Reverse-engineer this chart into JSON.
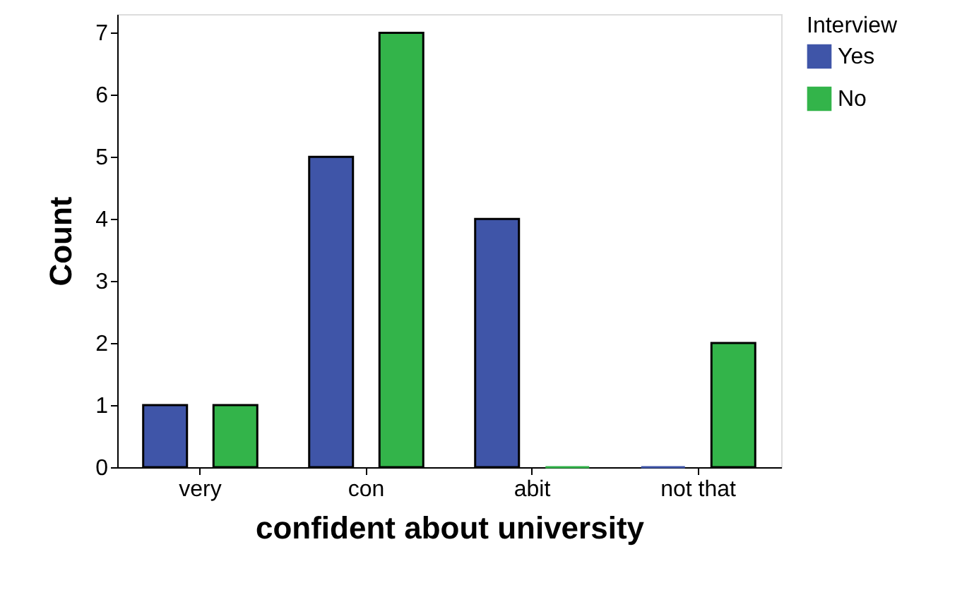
{
  "chart_data": {
    "type": "bar",
    "xlabel": "confident about university",
    "ylabel": "Count",
    "legend_title": "Interview",
    "categories": [
      "very",
      "con",
      "abit",
      "not that"
    ],
    "series": [
      {
        "name": "Yes",
        "color": "#3f55a8",
        "values": [
          1,
          5,
          4,
          0
        ]
      },
      {
        "name": "No",
        "color": "#33b44a",
        "values": [
          1,
          7,
          0,
          2
        ]
      }
    ],
    "ylim": [
      0,
      7.3
    ],
    "yticks": [
      0,
      1,
      2,
      3,
      4,
      5,
      6,
      7
    ],
    "grid": false,
    "legend": "top right"
  }
}
